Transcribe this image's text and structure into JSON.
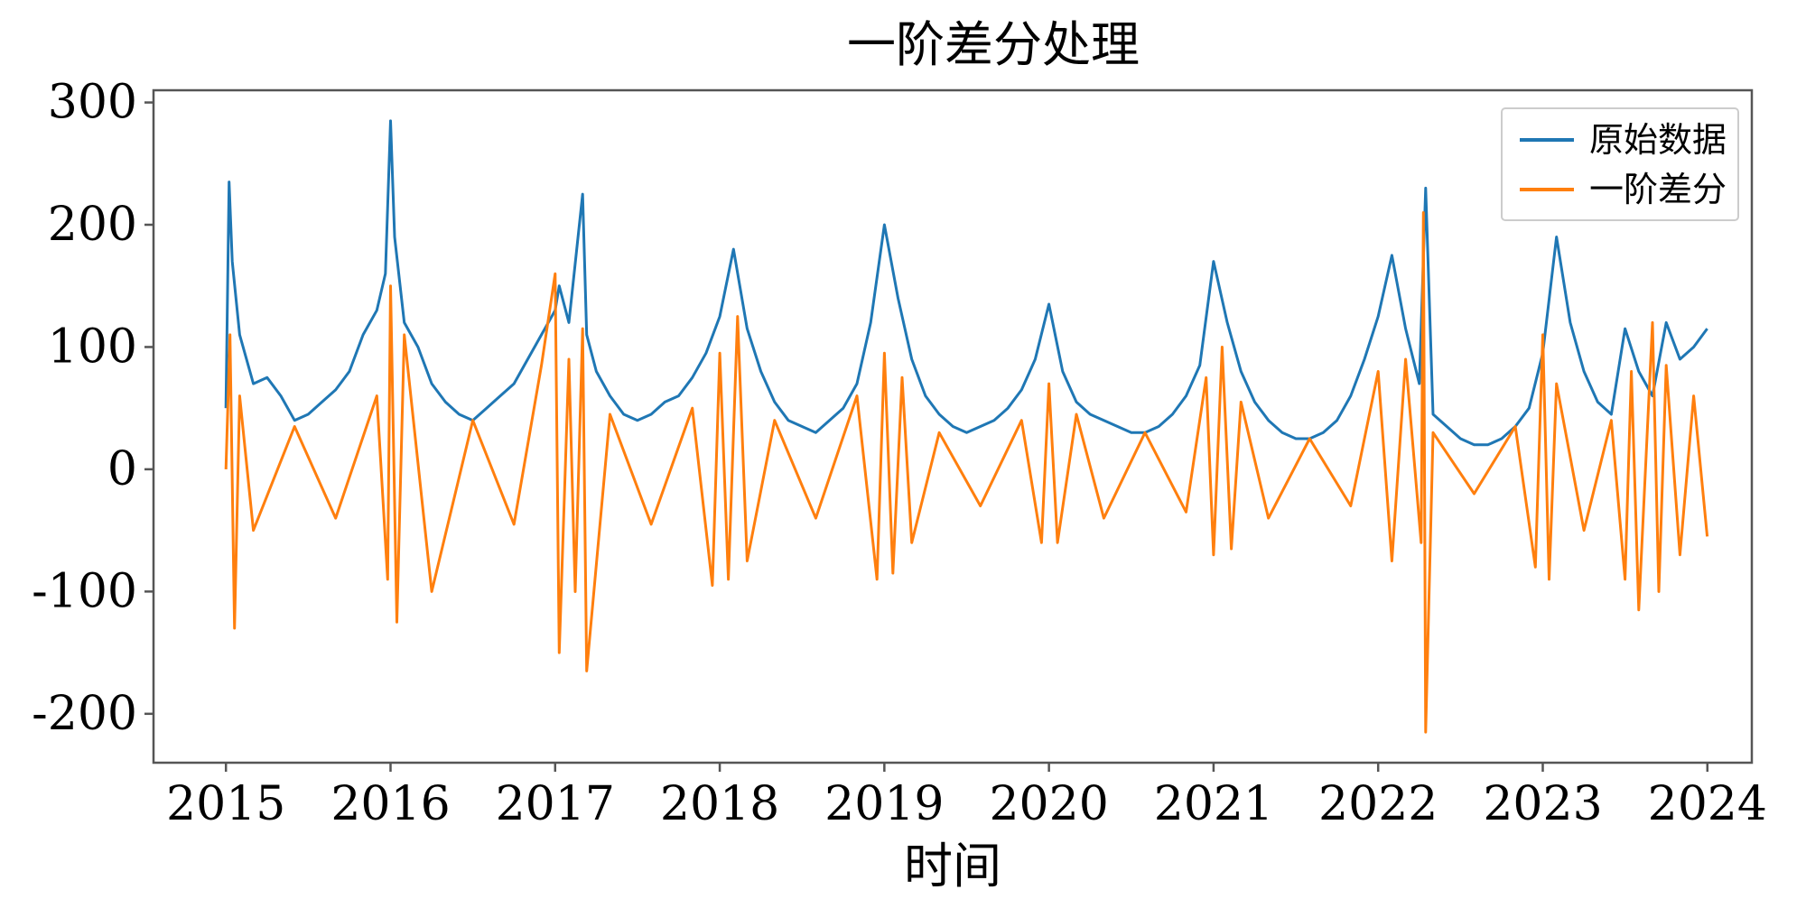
{
  "chart_data": {
    "type": "line",
    "title": "一阶差分处理",
    "xlabel": "时间",
    "ylabel": "",
    "xlim": [
      2014.56,
      2024.27
    ],
    "ylim": [
      -240,
      310
    ],
    "x_ticks": [
      "2015",
      "2016",
      "2017",
      "2018",
      "2019",
      "2020",
      "2021",
      "2022",
      "2023",
      "2024"
    ],
    "y_ticks": [
      300,
      200,
      100,
      0,
      -100,
      -200
    ],
    "y_tick_labels": [
      "300",
      "200",
      "100",
      "0",
      "-100",
      "-200"
    ],
    "grid": false,
    "legend_position": "top-right",
    "colors": {
      "original": "#1f77b4",
      "diff": "#ff7f0e"
    },
    "series": [
      {
        "name": "原始数据",
        "color": "#1f77b4",
        "x": [
          "2015-01-01",
          "2015-01-08",
          "2015-01-15",
          "2015-02-01",
          "2015-03-01",
          "2015-04-01",
          "2015-05-01",
          "2015-06-01",
          "2015-07-01",
          "2015-08-01",
          "2015-09-01",
          "2015-10-01",
          "2015-11-01",
          "2015-12-01",
          "2015-12-20",
          "2016-01-01",
          "2016-01-10",
          "2016-02-01",
          "2016-03-01",
          "2016-04-01",
          "2016-05-01",
          "2016-06-01",
          "2016-07-01",
          "2016-08-01",
          "2016-09-01",
          "2016-10-01",
          "2016-11-01",
          "2016-12-01",
          "2017-01-01",
          "2017-01-10",
          "2017-02-01",
          "2017-03-01",
          "2017-03-10",
          "2017-04-01",
          "2017-05-01",
          "2017-06-01",
          "2017-07-01",
          "2017-08-01",
          "2017-09-01",
          "2017-10-01",
          "2017-11-01",
          "2017-12-01",
          "2018-01-01",
          "2018-02-01",
          "2018-03-01",
          "2018-04-01",
          "2018-05-01",
          "2018-06-01",
          "2018-07-01",
          "2018-08-01",
          "2018-09-01",
          "2018-10-01",
          "2018-11-01",
          "2018-12-01",
          "2019-01-01",
          "2019-02-01",
          "2019-03-01",
          "2019-04-01",
          "2019-05-01",
          "2019-06-01",
          "2019-07-01",
          "2019-08-01",
          "2019-09-01",
          "2019-10-01",
          "2019-11-01",
          "2019-12-01",
          "2020-01-01",
          "2020-02-01",
          "2020-03-01",
          "2020-04-01",
          "2020-05-01",
          "2020-06-01",
          "2020-07-01",
          "2020-08-01",
          "2020-09-01",
          "2020-10-01",
          "2020-11-01",
          "2020-12-01",
          "2021-01-01",
          "2021-02-01",
          "2021-03-01",
          "2021-04-01",
          "2021-05-01",
          "2021-06-01",
          "2021-07-01",
          "2021-08-01",
          "2021-09-01",
          "2021-10-01",
          "2021-11-01",
          "2021-12-01",
          "2022-01-01",
          "2022-02-01",
          "2022-03-01",
          "2022-04-01",
          "2022-04-15",
          "2022-05-01",
          "2022-06-01",
          "2022-07-01",
          "2022-08-01",
          "2022-09-01",
          "2022-10-01",
          "2022-11-01",
          "2022-12-01",
          "2023-01-01",
          "2023-02-01",
          "2023-03-01",
          "2023-04-01",
          "2023-05-01",
          "2023-06-01",
          "2023-07-01",
          "2023-08-01",
          "2023-09-01",
          "2023-10-01",
          "2023-11-01",
          "2023-12-01",
          "2023-12-31"
        ],
        "values": [
          50,
          235,
          170,
          110,
          70,
          75,
          60,
          40,
          45,
          55,
          65,
          80,
          110,
          130,
          160,
          285,
          190,
          120,
          100,
          70,
          55,
          45,
          40,
          50,
          60,
          70,
          90,
          110,
          130,
          150,
          120,
          225,
          110,
          80,
          60,
          45,
          40,
          45,
          55,
          60,
          75,
          95,
          125,
          180,
          115,
          80,
          55,
          40,
          35,
          30,
          40,
          50,
          70,
          120,
          200,
          140,
          90,
          60,
          45,
          35,
          30,
          35,
          40,
          50,
          65,
          90,
          135,
          80,
          55,
          45,
          40,
          35,
          30,
          30,
          35,
          45,
          60,
          85,
          170,
          120,
          80,
          55,
          40,
          30,
          25,
          25,
          30,
          40,
          60,
          90,
          125,
          175,
          115,
          70,
          230,
          45,
          35,
          25,
          20,
          20,
          25,
          35,
          50,
          95,
          190,
          120,
          80,
          55,
          45,
          115,
          80,
          60,
          120,
          90,
          100,
          115
        ]
      },
      {
        "name": "一阶差分",
        "color": "#ff7f0e",
        "x": [
          "2015-01-01",
          "2015-01-10",
          "2015-01-20",
          "2015-02-01",
          "2015-03-01",
          "2015-06-01",
          "2015-09-01",
          "2015-12-01",
          "2015-12-25",
          "2016-01-01",
          "2016-01-15",
          "2016-02-01",
          "2016-04-01",
          "2016-07-01",
          "2016-10-01",
          "2016-12-01",
          "2017-01-01",
          "2017-01-10",
          "2017-02-01",
          "2017-02-15",
          "2017-03-01",
          "2017-03-10",
          "2017-05-01",
          "2017-08-01",
          "2017-11-01",
          "2017-12-15",
          "2018-01-01",
          "2018-01-20",
          "2018-02-10",
          "2018-03-01",
          "2018-05-01",
          "2018-08-01",
          "2018-11-01",
          "2018-12-15",
          "2019-01-01",
          "2019-01-20",
          "2019-02-10",
          "2019-03-01",
          "2019-05-01",
          "2019-08-01",
          "2019-11-01",
          "2019-12-15",
          "2020-01-01",
          "2020-01-20",
          "2020-03-01",
          "2020-05-01",
          "2020-08-01",
          "2020-11-01",
          "2020-12-15",
          "2021-01-01",
          "2021-01-20",
          "2021-02-10",
          "2021-03-01",
          "2021-05-01",
          "2021-08-01",
          "2021-11-01",
          "2022-01-01",
          "2022-02-01",
          "2022-03-01",
          "2022-04-05",
          "2022-04-10",
          "2022-04-15",
          "2022-05-01",
          "2022-08-01",
          "2022-11-01",
          "2022-12-15",
          "2023-01-01",
          "2023-01-15",
          "2023-02-01",
          "2023-04-01",
          "2023-06-01",
          "2023-07-01",
          "2023-07-15",
          "2023-08-01",
          "2023-09-01",
          "2023-09-15",
          "2023-10-01",
          "2023-11-01",
          "2023-12-01",
          "2023-12-31"
        ],
        "values": [
          0,
          110,
          -130,
          60,
          -50,
          35,
          -40,
          60,
          -90,
          150,
          -125,
          110,
          -100,
          40,
          -45,
          85,
          160,
          -150,
          90,
          -100,
          115,
          -165,
          45,
          -45,
          50,
          -95,
          95,
          -90,
          125,
          -75,
          40,
          -40,
          60,
          -90,
          95,
          -85,
          75,
          -60,
          30,
          -30,
          40,
          -60,
          70,
          -60,
          45,
          -40,
          30,
          -35,
          75,
          -70,
          100,
          -65,
          55,
          -40,
          25,
          -30,
          80,
          -75,
          90,
          -60,
          210,
          -215,
          30,
          -20,
          35,
          -80,
          110,
          -90,
          70,
          -50,
          40,
          -90,
          80,
          -115,
          120,
          -100,
          85,
          -70,
          60,
          -55
        ]
      }
    ]
  }
}
